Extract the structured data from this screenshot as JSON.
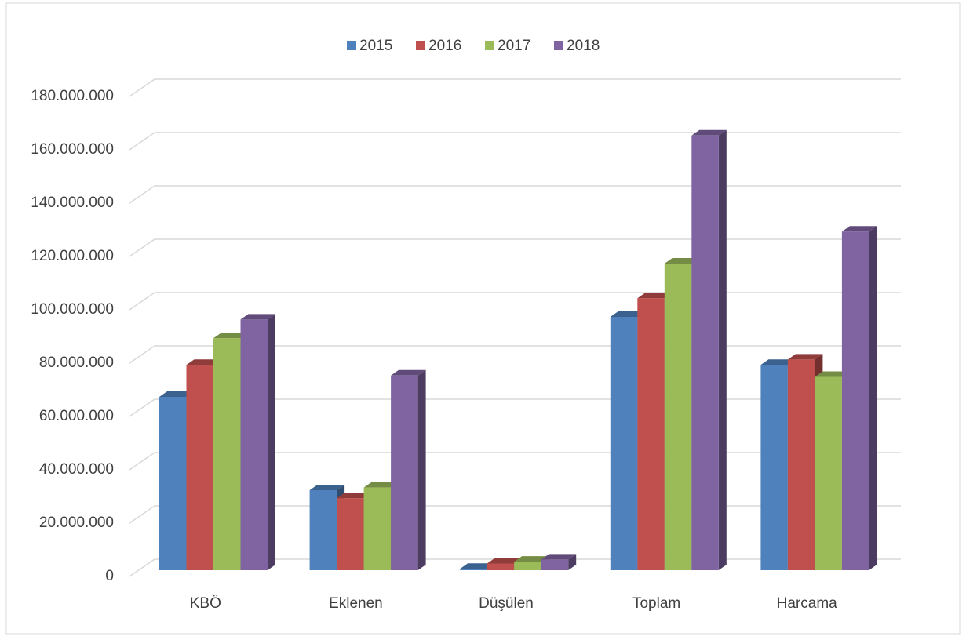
{
  "chart_data": {
    "type": "bar",
    "categories": [
      "KBÖ",
      "Eklenen",
      "Düşülen",
      "Toplam",
      "Harcama"
    ],
    "series": [
      {
        "name": "2015",
        "color": "#4f81bd",
        "values": [
          65000000,
          30000000,
          500000,
          95000000,
          77000000
        ]
      },
      {
        "name": "2016",
        "color": "#c0504d",
        "values": [
          77000000,
          27000000,
          2500000,
          102000000,
          79000000
        ]
      },
      {
        "name": "2017",
        "color": "#9bbb59",
        "values": [
          87000000,
          31000000,
          3200000,
          115000000,
          72500000
        ]
      },
      {
        "name": "2018",
        "color": "#8064a2",
        "values": [
          94000000,
          73000000,
          4000000,
          163000000,
          127000000
        ]
      }
    ],
    "ylim": [
      0,
      180000000
    ],
    "yticks": [
      0,
      {
        "value": 20000000,
        "label": "20.000.000"
      },
      {
        "value": 40000000,
        "label": "40.000.000"
      },
      {
        "value": 60000000,
        "label": "60.000.000"
      },
      {
        "value": 80000000,
        "label": "80.000.000"
      },
      {
        "value": 100000000,
        "label": "100.000.000"
      },
      {
        "value": 120000000,
        "label": "120.000.000"
      },
      {
        "value": 140000000,
        "label": "140.000.000"
      },
      {
        "value": 160000000,
        "label": "160.000.000"
      },
      {
        "value": 180000000,
        "label": "180.000.000"
      }
    ],
    "grid": true,
    "legend": "top"
  }
}
